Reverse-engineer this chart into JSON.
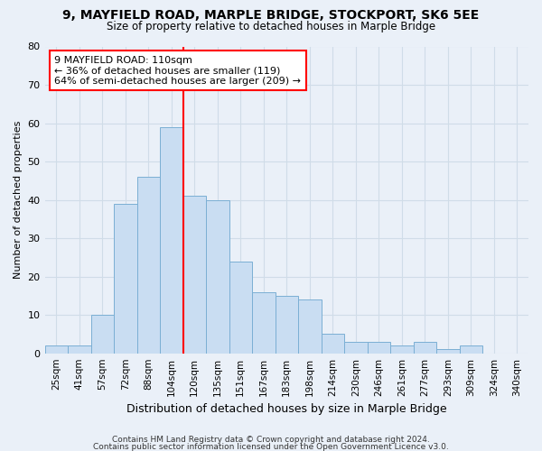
{
  "title1": "9, MAYFIELD ROAD, MARPLE BRIDGE, STOCKPORT, SK6 5EE",
  "title2": "Size of property relative to detached houses in Marple Bridge",
  "xlabel": "Distribution of detached houses by size in Marple Bridge",
  "ylabel": "Number of detached properties",
  "categories": [
    "25sqm",
    "41sqm",
    "57sqm",
    "72sqm",
    "88sqm",
    "104sqm",
    "120sqm",
    "135sqm",
    "151sqm",
    "167sqm",
    "183sqm",
    "198sqm",
    "214sqm",
    "230sqm",
    "246sqm",
    "261sqm",
    "277sqm",
    "293sqm",
    "309sqm",
    "324sqm",
    "340sqm"
  ],
  "values": [
    2,
    2,
    10,
    39,
    46,
    59,
    41,
    40,
    24,
    16,
    15,
    14,
    5,
    3,
    3,
    2,
    3,
    1,
    2,
    0,
    0
  ],
  "bar_color": "#c9ddf2",
  "bar_edge_color": "#7bafd4",
  "vline_color": "red",
  "vline_x": 5.5,
  "annotation_text": "9 MAYFIELD ROAD: 110sqm\n← 36% of detached houses are smaller (119)\n64% of semi-detached houses are larger (209) →",
  "annotation_box_color": "white",
  "annotation_box_edge": "red",
  "ylim": [
    0,
    80
  ],
  "yticks": [
    0,
    10,
    20,
    30,
    40,
    50,
    60,
    70,
    80
  ],
  "footnote1": "Contains HM Land Registry data © Crown copyright and database right 2024.",
  "footnote2": "Contains public sector information licensed under the Open Government Licence v3.0.",
  "bg_color": "#eaf0f8",
  "grid_color": "#d0dce8"
}
